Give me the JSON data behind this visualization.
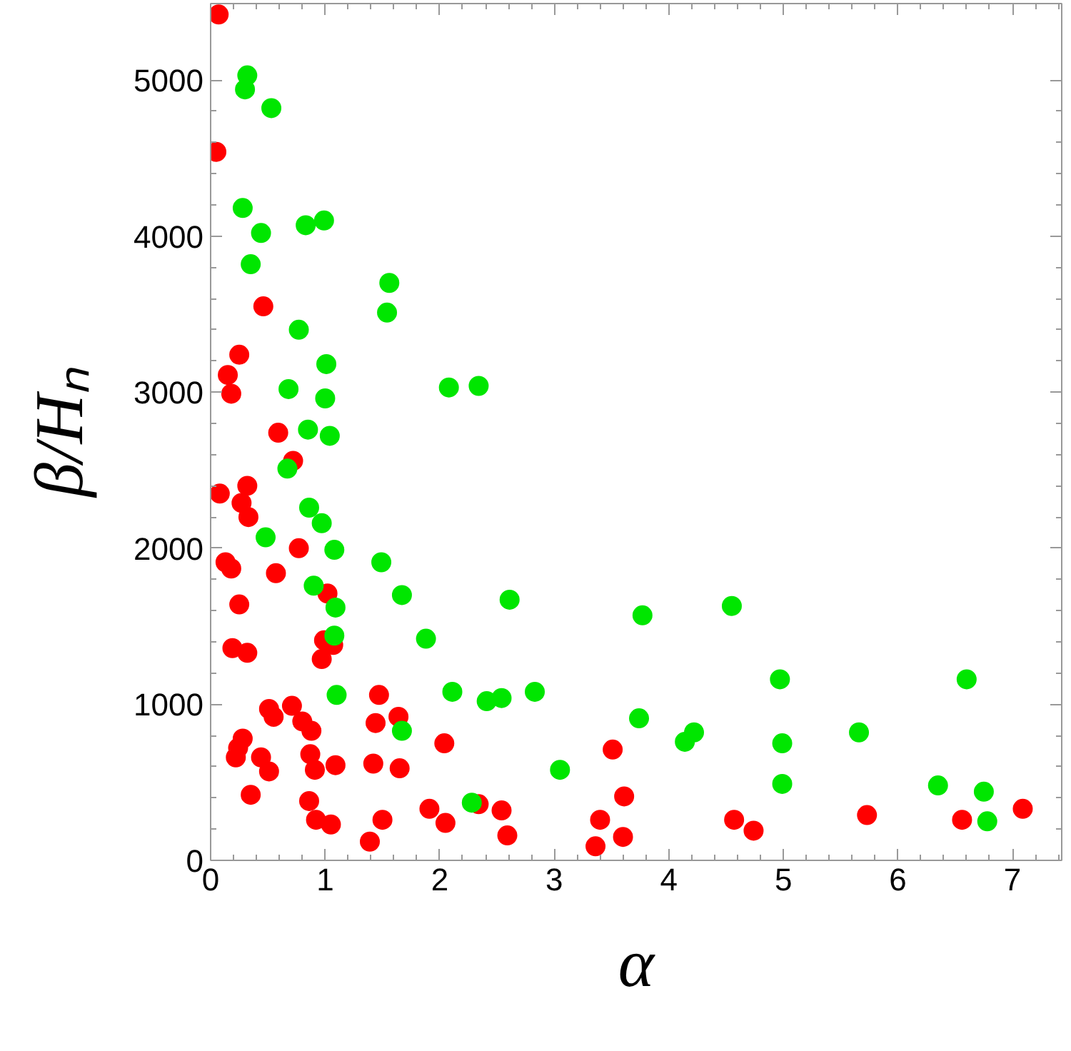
{
  "chart_data": {
    "type": "scatter",
    "xlabel": "α",
    "ylabel": "β/Hₙ",
    "xlim": [
      0,
      7.43
    ],
    "ylim": [
      0,
      5490
    ],
    "xticks": [
      0,
      1,
      2,
      3,
      4,
      5,
      6,
      7
    ],
    "yticks": [
      0,
      1000,
      2000,
      3000,
      4000,
      5000
    ],
    "grid": false,
    "marker": "circle",
    "series": [
      {
        "color": "#ff0000",
        "x": [
          0.07,
          0.05,
          0.46,
          0.25,
          0.15,
          0.18,
          0.59,
          0.72,
          0.08,
          0.32,
          0.27,
          0.33,
          0.77,
          0.13,
          0.18,
          0.57,
          1.02,
          0.25,
          0.99,
          1.07,
          0.97,
          0.19,
          0.32,
          1.47,
          0.71,
          0.51,
          0.55,
          0.8,
          1.44,
          1.64,
          0.88,
          2.04,
          0.28,
          0.24,
          0.22,
          0.44,
          0.87,
          0.51,
          0.91,
          1.09,
          1.42,
          1.65,
          0.35,
          0.86,
          0.92,
          1.05,
          1.5,
          1.39,
          1.91,
          2.05,
          2.34,
          2.54,
          2.59,
          3.36,
          3.4,
          3.51,
          3.61,
          3.6,
          4.57,
          4.74,
          5.73,
          6.56,
          7.09
        ],
        "values": [
          5420,
          4540,
          3550,
          3240,
          3110,
          2990,
          2740,
          2560,
          2350,
          2400,
          2290,
          2200,
          2000,
          1910,
          1870,
          1840,
          1710,
          1640,
          1410,
          1380,
          1290,
          1360,
          1330,
          1060,
          990,
          970,
          920,
          890,
          880,
          920,
          830,
          750,
          780,
          720,
          660,
          660,
          680,
          570,
          580,
          610,
          620,
          590,
          420,
          380,
          260,
          230,
          260,
          120,
          330,
          240,
          360,
          320,
          160,
          90,
          260,
          710,
          410,
          150,
          260,
          190,
          290,
          260,
          330
        ]
      },
      {
        "color": "#00e600",
        "x": [
          0.32,
          0.3,
          0.53,
          0.28,
          0.44,
          0.35,
          0.83,
          0.99,
          1.56,
          1.54,
          0.77,
          1.01,
          0.68,
          1.0,
          2.08,
          2.34,
          0.85,
          1.04,
          0.67,
          0.86,
          0.97,
          0.48,
          1.08,
          1.49,
          0.9,
          1.67,
          2.61,
          1.09,
          1.08,
          1.88,
          1.1,
          2.11,
          2.41,
          2.54,
          2.83,
          1.67,
          3.05,
          2.28,
          3.77,
          4.55,
          4.97,
          6.6,
          3.74,
          4.14,
          4.22,
          4.99,
          5.66,
          4.99,
          6.35,
          6.75,
          6.78
        ],
        "values": [
          5030,
          4940,
          4820,
          4180,
          4020,
          3820,
          4070,
          4100,
          3700,
          3510,
          3400,
          3180,
          3020,
          2960,
          3030,
          3040,
          2760,
          2720,
          2510,
          2260,
          2160,
          2070,
          1990,
          1910,
          1760,
          1700,
          1670,
          1620,
          1440,
          1420,
          1060,
          1080,
          1020,
          1040,
          1080,
          830,
          580,
          370,
          1570,
          1630,
          1160,
          1160,
          910,
          760,
          820,
          750,
          820,
          490,
          480,
          440,
          250
        ]
      }
    ]
  }
}
